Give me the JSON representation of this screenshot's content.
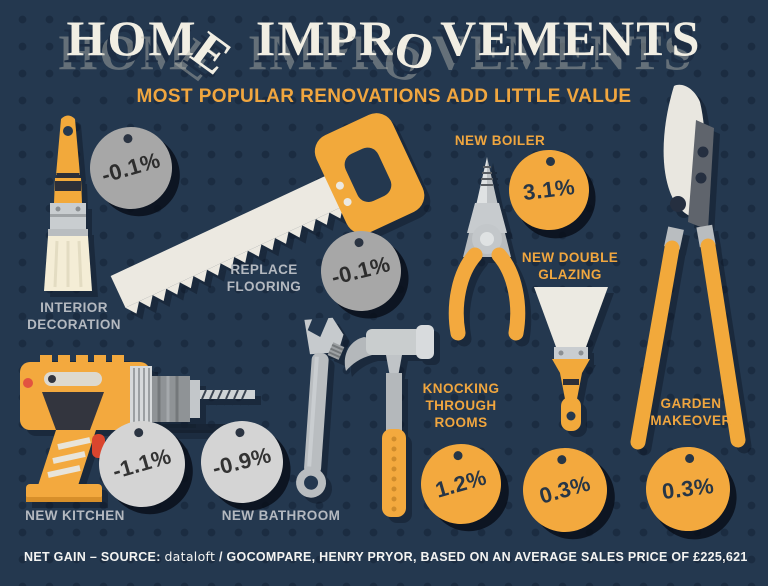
{
  "title": "HOME IMPROVEMENTS",
  "subtitle": "MOST POPULAR RENOVATIONS ADD LITTLE VALUE",
  "items": [
    {
      "id": "interior-decoration",
      "label": "INTERIOR\nDECORATION",
      "value": "-0.1%",
      "tool": "paintbrush",
      "tag_style": "gray-dark"
    },
    {
      "id": "replace-flooring",
      "label": "REPLACE\nFLOORING",
      "value": "-0.1%",
      "tool": "handsaw",
      "tag_style": "gray-dark"
    },
    {
      "id": "new-boiler",
      "label": "NEW BOILER",
      "value": "3.1%",
      "tool": "pliers",
      "tag_style": "orange"
    },
    {
      "id": "new-double-glazing",
      "label": "NEW DOUBLE\nGLAZING",
      "value": "0.3%",
      "tool": "putty-knife",
      "tag_style": "orange"
    },
    {
      "id": "garden-makeover",
      "label": "GARDEN\nMAKEOVER",
      "value": "0.3%",
      "tool": "loppers",
      "tag_style": "orange"
    },
    {
      "id": "new-kitchen",
      "label": "NEW KITCHEN",
      "value": "-1.1%",
      "tool": "power-drill",
      "tag_style": "gray-light"
    },
    {
      "id": "new-bathroom",
      "label": "NEW BATHROOM",
      "value": "-0.9%",
      "tool": "adjustable-wrench",
      "tag_style": "gray-light"
    },
    {
      "id": "knocking-through-rooms",
      "label": "KNOCKING\nTHROUGH\nROOMS",
      "value": "1.2%",
      "tool": "hammer",
      "tag_style": "orange"
    }
  ],
  "footer": {
    "prefix": "NET GAIN – SOURCE: ",
    "source_name": "dataloft",
    "suffix": " / GOCOMPARE, HENRY PRYOR, BASED ON AN AVERAGE SALES PRICE OF £225,621"
  },
  "colors": {
    "background": "#24384f",
    "dot": "#1b2c41",
    "accent_orange": "#f3a93e",
    "tag_gray_dark": "#a7a7a7",
    "tag_gray_light": "#d4d4d4",
    "label_gray": "#b4b9c0",
    "label_yellow": "#f0a63f",
    "title_white": "#f1eee3"
  },
  "chart_data": {
    "type": "bar",
    "title": "HOME IMPROVEMENTS",
    "subtitle": "MOST POPULAR RENOVATIONS ADD LITTLE VALUE",
    "categories": [
      "Interior decoration",
      "Replace flooring",
      "New boiler",
      "New double glazing",
      "Garden makeover",
      "New kitchen",
      "New bathroom",
      "Knocking through rooms"
    ],
    "values": [
      -0.1,
      -0.1,
      3.1,
      0.3,
      0.3,
      -1.1,
      -0.9,
      1.2
    ],
    "unit": "% net gain",
    "note": "Net gain – source: dataloft / GoCompare, Henry Pryor, based on an average sales price of £225,621"
  }
}
